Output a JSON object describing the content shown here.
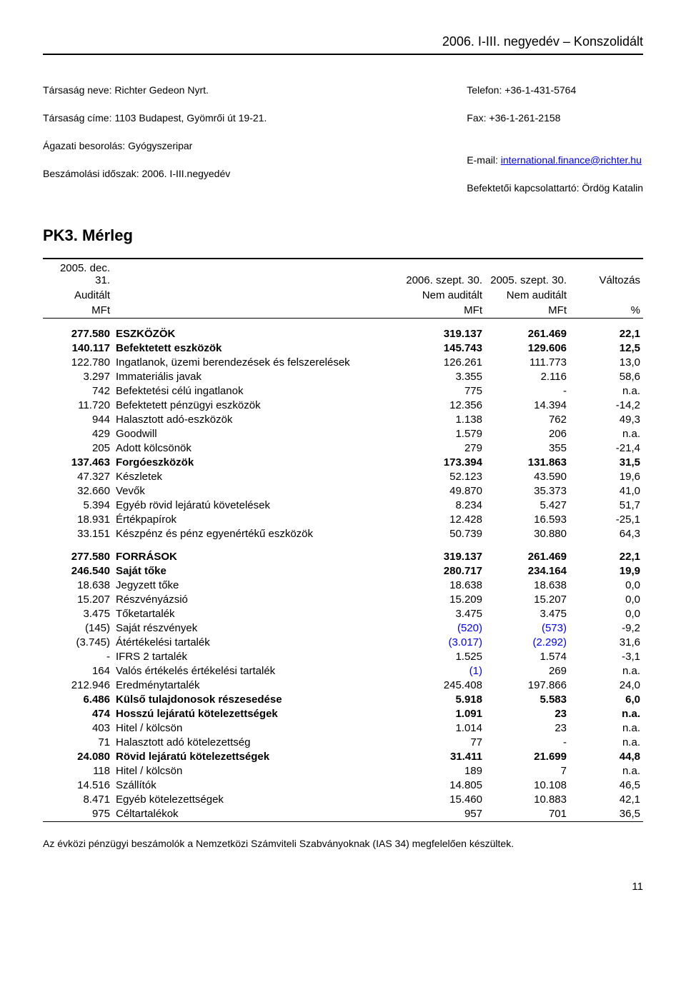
{
  "header": {
    "period": "2006. I-III. negyedév – Konszolidált"
  },
  "company": {
    "name": "Társaság neve: Richter Gedeon Nyrt.",
    "address": "Társaság címe: 1103 Budapest, Gyömrői út 19-21.",
    "classification": "Ágazati besorolás: Gyógyszeripar",
    "period": "Beszámolási időszak: 2006. I-III.negyedév",
    "phone": "Telefon: +36-1-431-5764",
    "fax": "Fax: +36-1-261-2158",
    "email_label": "E-mail: ",
    "email": "international.finance@richter.hu",
    "contact": "Befektetői kapcsolattartó: Ördög Katalin"
  },
  "section_title": "PK3. Mérleg",
  "table_head": {
    "c1_l1": "2005. dec. 31.",
    "c1_l2": "Auditált",
    "c1_l3": "MFt",
    "c3_l1": "2006. szept. 30.",
    "c3_l2": "Nem auditált",
    "c3_l3": "MFt",
    "c4_l1": "2005. szept. 30.",
    "c4_l2": "Nem auditált",
    "c4_l3": "MFt",
    "c5_l1": "Változás",
    "c5_l3": "%"
  },
  "rows": [
    {
      "c1": "277.580",
      "c2": "ESZKÖZÖK",
      "c3": "319.137",
      "c4": "261.469",
      "c5": "22,1",
      "bold": true
    },
    {
      "c1": "140.117",
      "c2": "Befektetett eszközök",
      "c3": "145.743",
      "c4": "129.606",
      "c5": "12,5",
      "bold": true
    },
    {
      "c1": "122.780",
      "c2": "Ingatlanok, üzemi berendezések és felszerelések",
      "c3": "126.261",
      "c4": "111.773",
      "c5": "13,0"
    },
    {
      "c1": "3.297",
      "c2": "Immateriális javak",
      "c3": "3.355",
      "c4": "2.116",
      "c5": "58,6"
    },
    {
      "c1": "742",
      "c2": "Befektetési célú ingatlanok",
      "c3": "775",
      "c4": "-",
      "c5": "n.a."
    },
    {
      "c1": "11.720",
      "c2": "Befektetett pénzügyi eszközök",
      "c3": "12.356",
      "c4": "14.394",
      "c5": "-14,2"
    },
    {
      "c1": "944",
      "c2": "Halasztott adó-eszközök",
      "c3": "1.138",
      "c4": "762",
      "c5": "49,3"
    },
    {
      "c1": "429",
      "c2": "Goodwill",
      "c3": "1.579",
      "c4": "206",
      "c5": "n.a."
    },
    {
      "c1": "205",
      "c2": "Adott kölcsönök",
      "c3": "279",
      "c4": "355",
      "c5": "-21,4"
    },
    {
      "c1": "137.463",
      "c2": "Forgóeszközök",
      "c3": "173.394",
      "c4": "131.863",
      "c5": "31,5",
      "bold": true
    },
    {
      "c1": "47.327",
      "c2": "Készletek",
      "c3": "52.123",
      "c4": "43.590",
      "c5": "19,6"
    },
    {
      "c1": "32.660",
      "c2": "Vevők",
      "c3": "49.870",
      "c4": "35.373",
      "c5": "41,0"
    },
    {
      "c1": "5.394",
      "c2": "Egyéb rövid lejáratú követelések",
      "c3": "8.234",
      "c4": "5.427",
      "c5": "51,7"
    },
    {
      "c1": "18.931",
      "c2": "Értékpapírok",
      "c3": "12.428",
      "c4": "16.593",
      "c5": "-25,1"
    },
    {
      "c1": "33.151",
      "c2": "Készpénz és pénz egyenértékű eszközök",
      "c3": "50.739",
      "c4": "30.880",
      "c5": "64,3"
    }
  ],
  "rows2": [
    {
      "c1": "277.580",
      "c2": "FORRÁSOK",
      "c3": "319.137",
      "c4": "261.469",
      "c5": "22,1",
      "bold": true
    },
    {
      "c1": "246.540",
      "c2": "Saját tőke",
      "c3": "280.717",
      "c4": "234.164",
      "c5": "19,9",
      "bold": true
    },
    {
      "c1": "18.638",
      "c2": "Jegyzett tőke",
      "c3": "18.638",
      "c4": "18.638",
      "c5": "0,0"
    },
    {
      "c1": "15.207",
      "c2": "Részvényázsió",
      "c3": "15.209",
      "c4": "15.207",
      "c5": "0,0"
    },
    {
      "c1": "3.475",
      "c2": "Tőketartalék",
      "c3": "3.475",
      "c4": "3.475",
      "c5": "0,0"
    },
    {
      "c1": "(145)",
      "c2": "Saját részvények",
      "c3": "(520)",
      "c4": "(573)",
      "c5": "-9,2",
      "blue34": true
    },
    {
      "c1": "(3.745)",
      "c2": "Átértékelési tartalék",
      "c3": "(3.017)",
      "c4": "(2.292)",
      "c5": "31,6",
      "blue34": true
    },
    {
      "c1": "-",
      "c2": "IFRS 2 tartalék",
      "c3": "1.525",
      "c4": "1.574",
      "c5": "-3,1"
    },
    {
      "c1": "164",
      "c2": "Valós értékelés értékelési tartalék",
      "c3": "(1)",
      "c4": "269",
      "c5": "n.a.",
      "blue3": true
    },
    {
      "c1": "212.946",
      "c2": "Eredménytartalék",
      "c3": "245.408",
      "c4": "197.866",
      "c5": "24,0"
    },
    {
      "c1": "6.486",
      "c2": "Külső tulajdonosok részesedése",
      "c3": "5.918",
      "c4": "5.583",
      "c5": "6,0",
      "bold": true
    },
    {
      "c1": "474",
      "c2": "Hosszú lejáratú kötelezettségek",
      "c3": "1.091",
      "c4": "23",
      "c5": "n.a.",
      "bold": true
    },
    {
      "c1": "403",
      "c2": "Hitel / kölcsön",
      "c3": "1.014",
      "c4": "23",
      "c5": "n.a."
    },
    {
      "c1": "71",
      "c2": "Halasztott adó kötelezettség",
      "c3": "77",
      "c4": "-",
      "c5": "n.a."
    },
    {
      "c1": "24.080",
      "c2": "Rövid lejáratú kötelezettségek",
      "c3": "31.411",
      "c4": "21.699",
      "c5": "44,8",
      "bold": true
    },
    {
      "c1": "118",
      "c2": "Hitel / kölcsön",
      "c3": "189",
      "c4": "7",
      "c5": "n.a."
    },
    {
      "c1": "14.516",
      "c2": "Szállítók",
      "c3": "14.805",
      "c4": "10.108",
      "c5": "46,5"
    },
    {
      "c1": "8.471",
      "c2": "Egyéb kötelezettségek",
      "c3": "15.460",
      "c4": "10.883",
      "c5": "42,1"
    },
    {
      "c1": "975",
      "c2": "Céltartalékok",
      "c3": "957",
      "c4": "701",
      "c5": "36,5"
    }
  ],
  "foot_note": "Az évközi pénzügyi beszámolók a Nemzetközi Számviteli Szabványoknak (IAS 34) megfelelően készültek.",
  "page_number": "11"
}
